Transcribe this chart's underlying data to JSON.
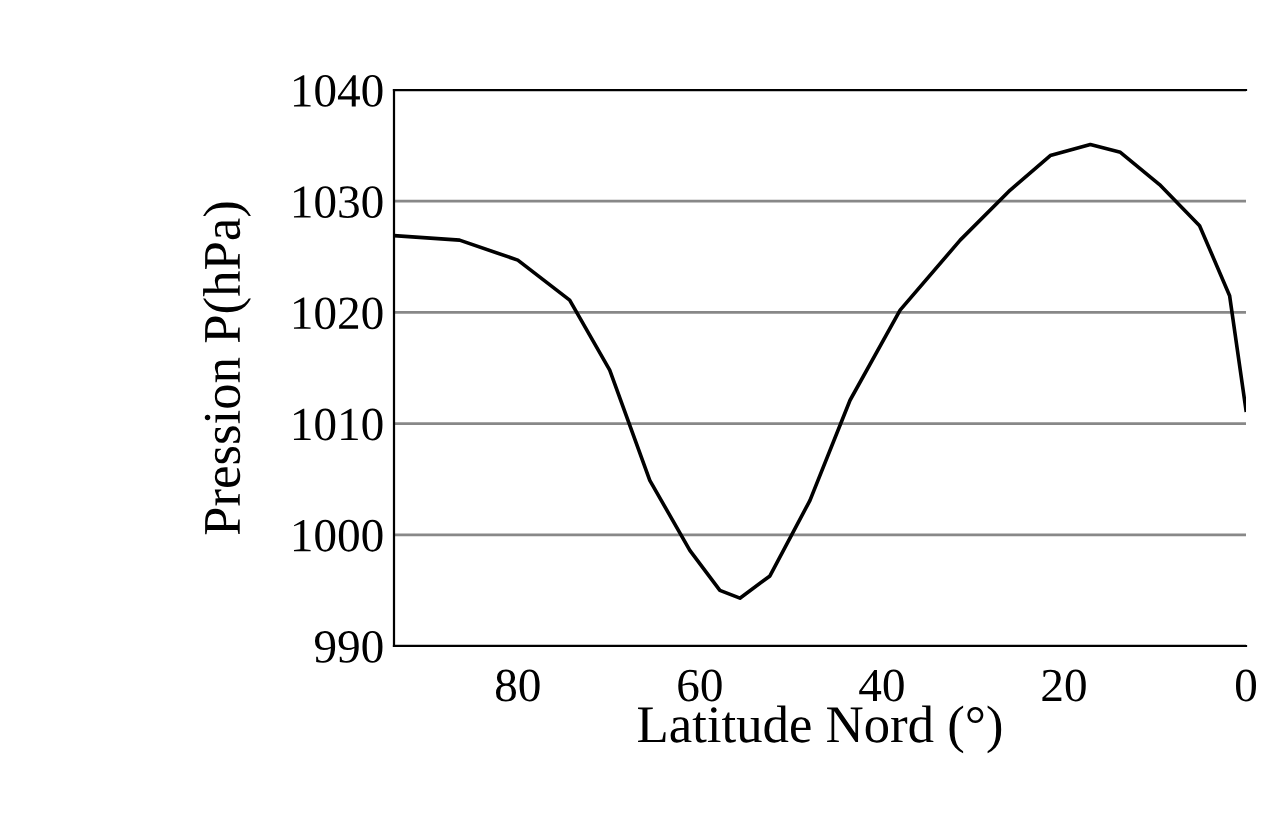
{
  "chart_data": {
    "type": "line",
    "xlabel": "Latitude Nord (°)",
    "ylabel": "Pression P(hPa)",
    "x": [
      93.6,
      86.4,
      80,
      74.3,
      69.9,
      65.5,
      61.1,
      57.8,
      55.6,
      52.3,
      47.9,
      43.5,
      38.0,
      31.4,
      25.9,
      21.5,
      17.1,
      13.8,
      9.5,
      5.1,
      1.8,
      0
    ],
    "series": [
      {
        "color": "#000000",
        "values": [
          1026.9,
          1026.5,
          1024.7,
          1021.1,
          1014.8,
          1004.9,
          998.6,
          995.0,
          994.3,
          996.3,
          1003.1,
          1012.1,
          1020.2,
          1026.5,
          1031.0,
          1034.1,
          1035.1,
          1034.4,
          1031.5,
          1027.8,
          1021.5,
          1011.2
        ]
      }
    ],
    "xlim": [
      93.6,
      0
    ],
    "xticks": [
      80,
      60,
      40,
      20,
      0
    ],
    "ylim": [
      990,
      1040
    ],
    "yticks": [
      990,
      1000,
      1010,
      1020,
      1030,
      1040
    ],
    "grid": "y",
    "marker": "none",
    "line_style": "solid"
  }
}
